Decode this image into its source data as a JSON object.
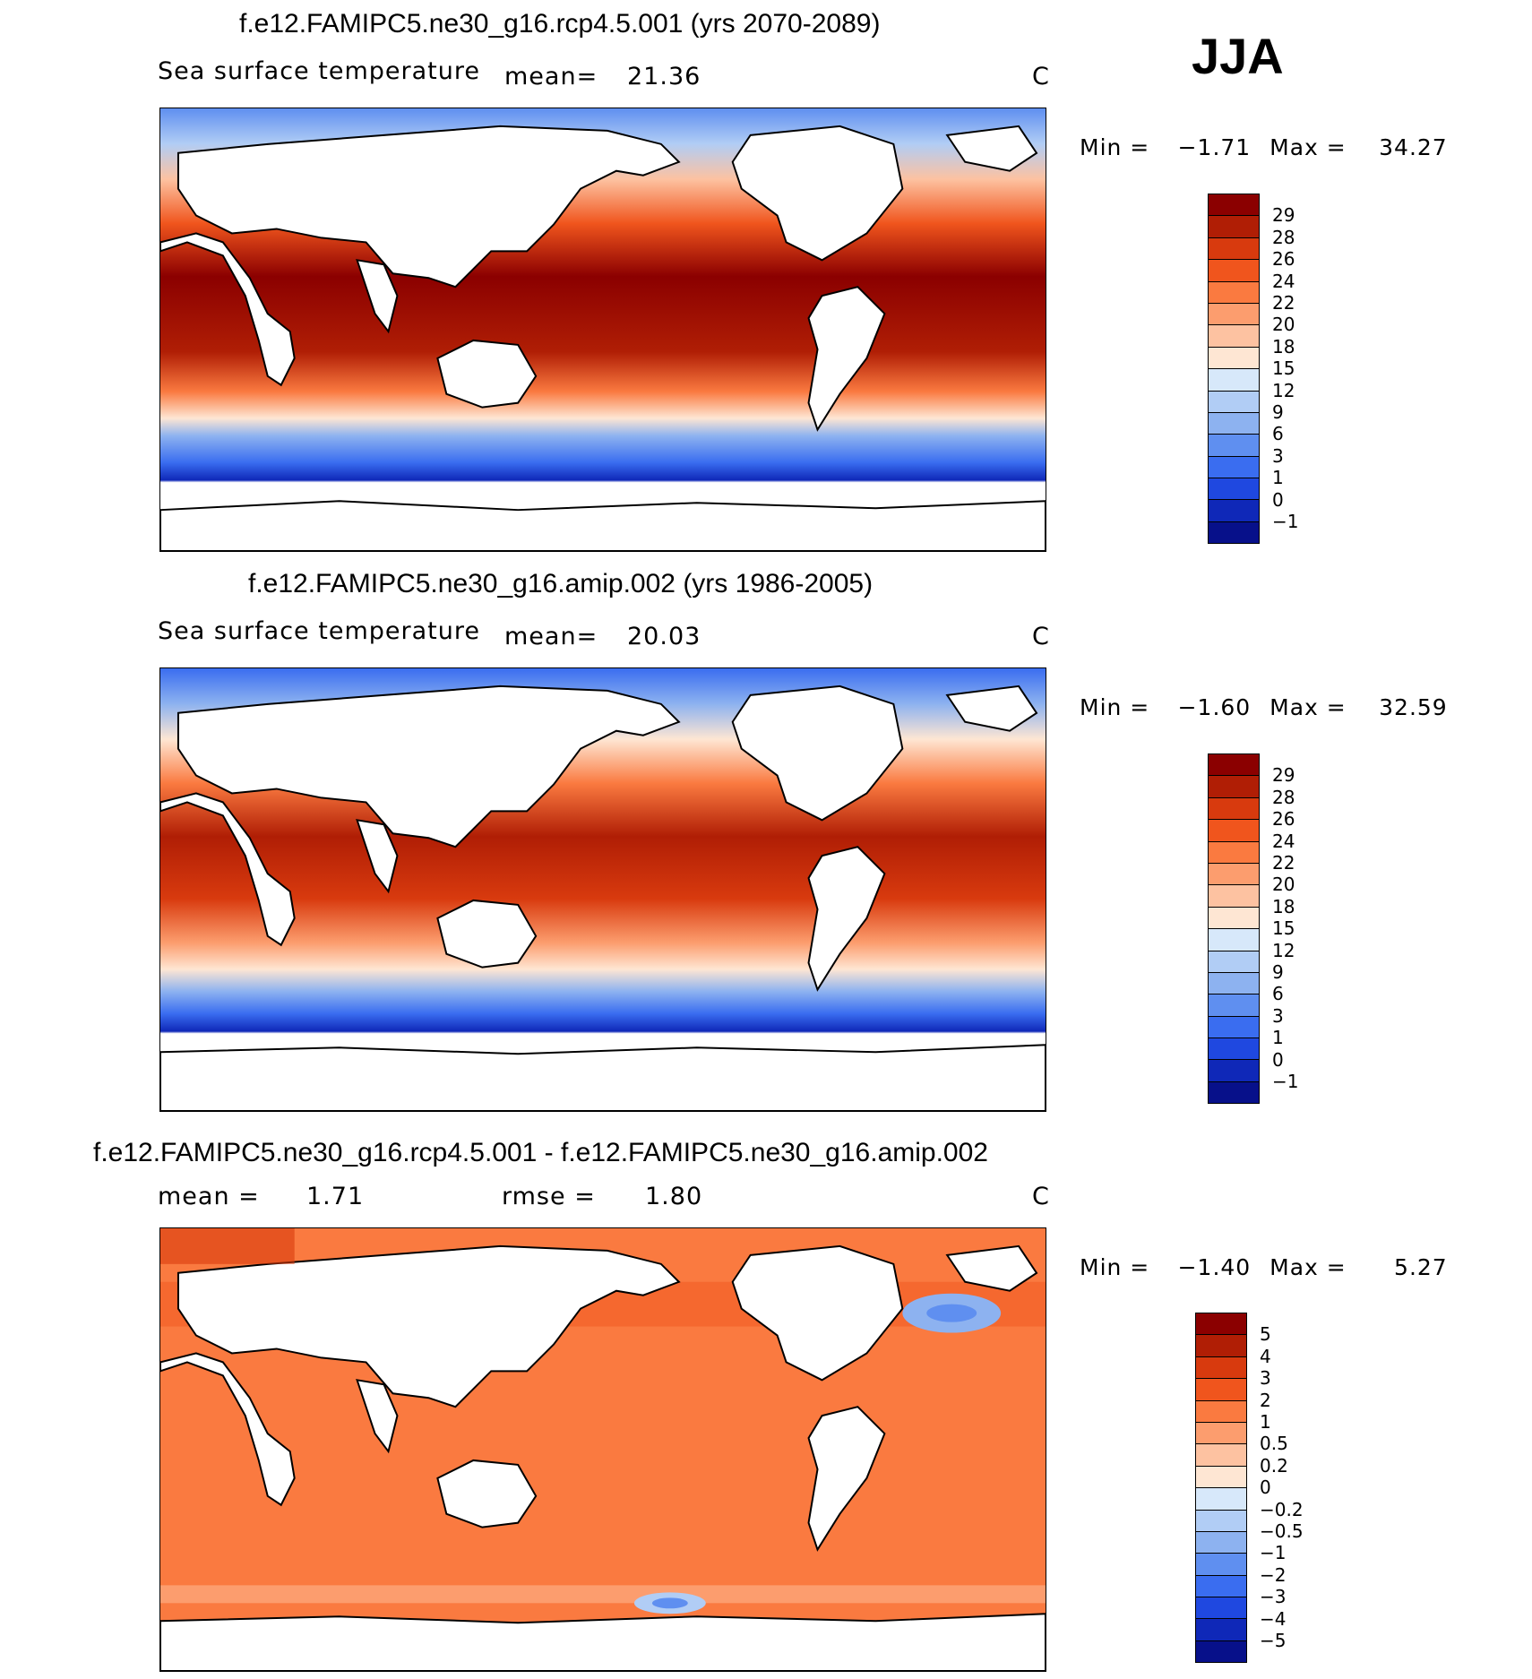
{
  "season": "JJA",
  "panels": [
    {
      "title": "f.e12.FAMIPC5.ne30_g16.rcp4.5.001 (yrs 2070-2089)",
      "variable": "Sea surface temperature",
      "stat1_label": "mean=",
      "stat1_value": "21.36",
      "stat2_label": "",
      "stat2_value": "",
      "units": "C",
      "min_label": "Min =",
      "min_value": "−1.71",
      "max_label": "Max =",
      "max_value": "34.27",
      "colorbar": {
        "labels": [
          "29",
          "28",
          "26",
          "24",
          "22",
          "20",
          "18",
          "15",
          "12",
          "9",
          "6",
          "3",
          "1",
          "0",
          "−1"
        ],
        "colors": [
          "#8b0000",
          "#b01e05",
          "#d83a0e",
          "#f0551d",
          "#fa7a40",
          "#fc9d6e",
          "#fdc2a1",
          "#fee6d3",
          "#d7e8fa",
          "#b1cdf5",
          "#8db2f0",
          "#5f8ff0",
          "#3a6df0",
          "#1f48e0",
          "#0f28b8",
          "#07108a"
        ]
      }
    },
    {
      "title": "f.e12.FAMIPC5.ne30_g16.amip.002 (yrs 1986-2005)",
      "variable": "Sea surface temperature",
      "stat1_label": "mean=",
      "stat1_value": "20.03",
      "stat2_label": "",
      "stat2_value": "",
      "units": "C",
      "min_label": "Min =",
      "min_value": "−1.60",
      "max_label": "Max =",
      "max_value": "32.59",
      "colorbar": {
        "labels": [
          "29",
          "28",
          "26",
          "24",
          "22",
          "20",
          "18",
          "15",
          "12",
          "9",
          "6",
          "3",
          "1",
          "0",
          "−1"
        ],
        "colors": [
          "#8b0000",
          "#b01e05",
          "#d83a0e",
          "#f0551d",
          "#fa7a40",
          "#fc9d6e",
          "#fdc2a1",
          "#fee6d3",
          "#d7e8fa",
          "#b1cdf5",
          "#8db2f0",
          "#5f8ff0",
          "#3a6df0",
          "#1f48e0",
          "#0f28b8",
          "#07108a"
        ]
      }
    },
    {
      "title": "f.e12.FAMIPC5.ne30_g16.rcp4.5.001 - f.e12.FAMIPC5.ne30_g16.amip.002",
      "variable": "",
      "stat1_label": "mean =",
      "stat1_value": "1.71",
      "stat2_label": "rmse =",
      "stat2_value": "1.80",
      "units": "C",
      "min_label": "Min =",
      "min_value": "−1.40",
      "max_label": "Max =",
      "max_value": "5.27",
      "colorbar": {
        "labels": [
          "5",
          "4",
          "3",
          "2",
          "1",
          "0.5",
          "0.2",
          "0",
          "−0.2",
          "−0.5",
          "−1",
          "−2",
          "−3",
          "−4",
          "−5"
        ],
        "colors": [
          "#8b0000",
          "#b01e05",
          "#d83a0e",
          "#f0551d",
          "#fa7a40",
          "#fc9d6e",
          "#fdc2a1",
          "#fee6d3",
          "#d7e8fa",
          "#b1cdf5",
          "#8db2f0",
          "#5f8ff0",
          "#3a6df0",
          "#1f48e0",
          "#0f28b8",
          "#07108a"
        ]
      }
    }
  ]
}
